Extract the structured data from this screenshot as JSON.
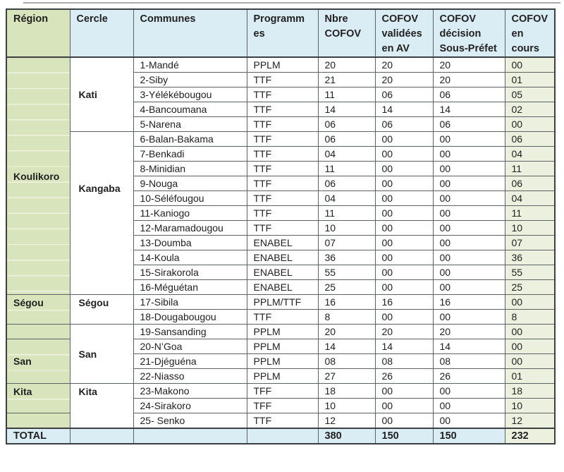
{
  "colors": {
    "header_green": "#d8e4bc",
    "header_blue": "#dbedf4",
    "pale_green": "#ecf1df"
  },
  "table": {
    "columns": [
      {
        "label": "Région",
        "lines": [
          "Région"
        ]
      },
      {
        "label": "Cercle",
        "lines": [
          "Cercle"
        ]
      },
      {
        "label": "Communes",
        "lines": [
          "Communes"
        ]
      },
      {
        "label": "Programmes",
        "lines": [
          "Programm",
          "es"
        ]
      },
      {
        "label": "Nbre COFOV",
        "lines": [
          "Nbre",
          "COFOV"
        ]
      },
      {
        "label": "COFOV validées en AV",
        "lines": [
          "COFOV",
          "validées",
          "en AV"
        ]
      },
      {
        "label": "COFOV décision Sous-Préfet",
        "lines": [
          "COFOV",
          "décision",
          "Sous-Préfet"
        ]
      },
      {
        "label": "COFOV en cours",
        "lines": [
          "COFOV",
          "en cours"
        ]
      }
    ],
    "region_cells": [
      {
        "label": "Koulikoro",
        "row": 1,
        "span": 16,
        "valign": "middle"
      },
      {
        "label": "Ségou",
        "row": 17,
        "span": 2,
        "valign": "top"
      },
      {
        "label": "",
        "row": 19,
        "span": 1,
        "valign": "top"
      },
      {
        "label": "San",
        "row": 20,
        "span": 3,
        "valign": "middle"
      },
      {
        "label": "Kita",
        "row": 23,
        "span": 2,
        "valign": "top"
      },
      {
        "label": "",
        "row": 25,
        "span": 1,
        "valign": "top"
      }
    ],
    "cercle_cells": [
      {
        "label": "Kati",
        "row": 1,
        "span": 5,
        "valign": "middle"
      },
      {
        "label": "Kangaba",
        "row": 6,
        "span": 11,
        "valign": "upper"
      },
      {
        "label": "Ségou",
        "row": 17,
        "span": 2,
        "valign": "top"
      },
      {
        "label": "San",
        "row": 19,
        "span": 4,
        "valign": "middle"
      },
      {
        "label": "Kita",
        "row": 23,
        "span": 3,
        "valign": "top"
      }
    ],
    "rows": [
      {
        "commune": "1-Mandé",
        "programme": "PPLM",
        "nbre": "20",
        "validees": "20",
        "decision": "20",
        "en_cours": "00"
      },
      {
        "commune": "2-Siby",
        "programme": "TTF",
        "nbre": "21",
        "validees": "20",
        "decision": "20",
        "en_cours": "01"
      },
      {
        "commune": "3-Yélékébougou",
        "programme": "TTF",
        "nbre": "11",
        "validees": "06",
        "decision": "06",
        "en_cours": "05"
      },
      {
        "commune": "4-Bancoumana",
        "programme": "TTF",
        "nbre": "14",
        "validees": "14",
        "decision": "14",
        "en_cours": "02"
      },
      {
        "commune": "5-Narena",
        "programme": "TTF",
        "nbre": "06",
        "validees": "06",
        "decision": "06",
        "en_cours": "00"
      },
      {
        "commune": "6-Balan-Bakama",
        "programme": "TTF",
        "nbre": "06",
        "validees": "00",
        "decision": "00",
        "en_cours": "06"
      },
      {
        "commune": "7-Benkadi",
        "programme": "TTF",
        "nbre": "04",
        "validees": "00",
        "decision": "00",
        "en_cours": "04"
      },
      {
        "commune": "8-Minidian",
        "programme": "TTF",
        "nbre": "11",
        "validees": "00",
        "decision": "00",
        "en_cours": "11"
      },
      {
        "commune": "9-Nouga",
        "programme": "TTF",
        "nbre": "06",
        "validees": "00",
        "decision": "00",
        "en_cours": "06"
      },
      {
        "commune": "10-Séléfougou",
        "programme": "TTF",
        "nbre": "04",
        "validees": "00",
        "decision": "00",
        "en_cours": "04"
      },
      {
        "commune": "11-Kaniogo",
        "programme": "TTF",
        "nbre": "11",
        "validees": "00",
        "decision": "00",
        "en_cours": "11"
      },
      {
        "commune": "12-Maramadougou",
        "programme": "TTF",
        "nbre": "10",
        "validees": "00",
        "decision": "00",
        "en_cours": "10"
      },
      {
        "commune": "13-Doumba",
        "programme": "ENABEL",
        "nbre": "07",
        "validees": "00",
        "decision": "00",
        "en_cours": "07"
      },
      {
        "commune": "14-Koula",
        "programme": "ENABEL",
        "nbre": "36",
        "validees": "00",
        "decision": "00",
        "en_cours": "36"
      },
      {
        "commune": "15-Sirakorola",
        "programme": "ENABEL",
        "nbre": "55",
        "validees": "00",
        "decision": "00",
        "en_cours": "55"
      },
      {
        "commune": "16-Méguétan",
        "programme": "ENABEL",
        "nbre": "25",
        "validees": "00",
        "decision": "00",
        "en_cours": "25"
      },
      {
        "commune": "17-Sibila",
        "programme": "PPLM/TTF",
        "nbre": "16",
        "validees": "16",
        "decision": "16",
        "en_cours": "00"
      },
      {
        "commune": "18-Dougabougou",
        "programme": "TTF",
        "nbre": "8",
        "validees": "00",
        "decision": "00",
        "en_cours": "8"
      },
      {
        "commune": "19-Sansanding",
        "programme": "PPLM",
        "nbre": "20",
        "validees": "20",
        "decision": "20",
        "en_cours": "00"
      },
      {
        "commune": "20-N’Goa",
        "programme": "PPLM",
        "nbre": "14",
        "validees": "14",
        "decision": "14",
        "en_cours": "00"
      },
      {
        "commune": "21-Djéguéna",
        "programme": "PPLM",
        "nbre": "08",
        "validees": "08",
        "decision": "08",
        "en_cours": "00"
      },
      {
        "commune": "22-Niasso",
        "programme": "PPLM",
        "nbre": "27",
        "validees": "26",
        "decision": "26",
        "en_cours": "01"
      },
      {
        "commune": "23-Makono",
        "programme": "TFF",
        "nbre": "18",
        "validees": "00",
        "decision": "00",
        "en_cours": "18"
      },
      {
        "commune": "24-Sirakoro",
        "programme": "TFF",
        "nbre": "10",
        "validees": "00",
        "decision": "00",
        "en_cours": "10"
      },
      {
        "commune": "25- Senko",
        "programme": "TTF",
        "nbre": "12",
        "validees": "00",
        "decision": "00",
        "en_cours": "12"
      }
    ],
    "total": {
      "label": "TOTAL",
      "nbre": "380",
      "validees": "150",
      "decision": "150",
      "en_cours": "232"
    }
  }
}
